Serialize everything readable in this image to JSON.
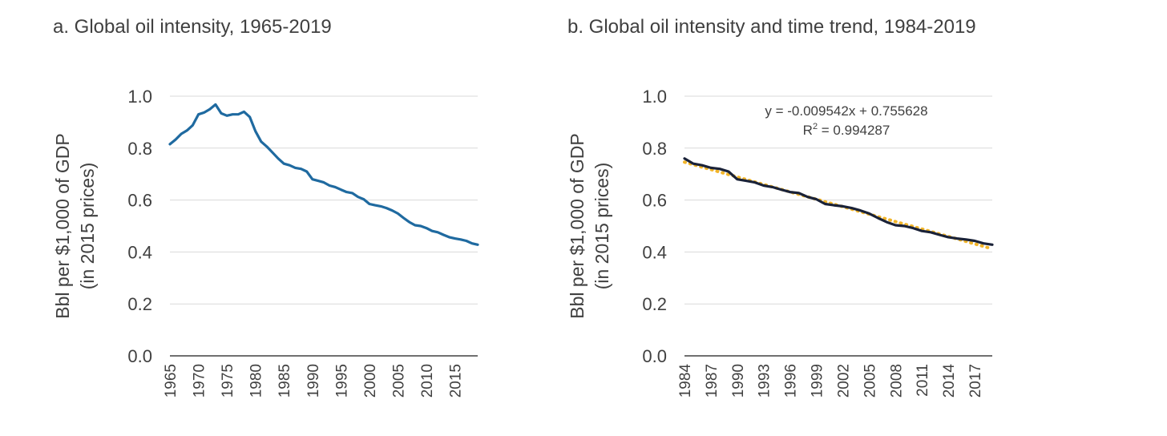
{
  "chart_data": [
    {
      "type": "line",
      "title": "a. Global oil intensity, 1965-2019",
      "ylabel_line1": "Bbl per $1,000 of GDP",
      "ylabel_line2": "(in 2015 prices)",
      "xlabel": "",
      "ylim": [
        0,
        1.0
      ],
      "yticks": [
        "0.0",
        "0.2",
        "0.4",
        "0.6",
        "0.8",
        "1.0"
      ],
      "xlim": [
        1965,
        2019
      ],
      "xticks": [
        "1965",
        "1970",
        "1975",
        "1980",
        "1985",
        "1990",
        "1995",
        "2000",
        "2005",
        "2010",
        "2015"
      ],
      "grid": true,
      "legend": "none",
      "series": [
        {
          "color": "#1F6AA0",
          "x": [
            1965,
            1966,
            1967,
            1968,
            1969,
            1970,
            1971,
            1972,
            1973,
            1974,
            1975,
            1976,
            1977,
            1978,
            1979,
            1980,
            1981,
            1982,
            1983,
            1984,
            1985,
            1986,
            1987,
            1988,
            1989,
            1990,
            1991,
            1992,
            1993,
            1994,
            1995,
            1996,
            1997,
            1998,
            1999,
            2000,
            2001,
            2002,
            2003,
            2004,
            2005,
            2006,
            2007,
            2008,
            2009,
            2010,
            2011,
            2012,
            2013,
            2014,
            2015,
            2016,
            2017,
            2018,
            2019
          ],
          "values": [
            0.815,
            0.833,
            0.855,
            0.868,
            0.888,
            0.93,
            0.937,
            0.95,
            0.968,
            0.934,
            0.925,
            0.93,
            0.93,
            0.94,
            0.92,
            0.865,
            0.825,
            0.806,
            0.783,
            0.76,
            0.74,
            0.734,
            0.724,
            0.72,
            0.71,
            0.68,
            0.674,
            0.668,
            0.656,
            0.65,
            0.64,
            0.631,
            0.627,
            0.612,
            0.603,
            0.585,
            0.58,
            0.576,
            0.569,
            0.56,
            0.548,
            0.531,
            0.515,
            0.503,
            0.5,
            0.492,
            0.481,
            0.476,
            0.466,
            0.457,
            0.452,
            0.448,
            0.443,
            0.433,
            0.428
          ]
        }
      ]
    },
    {
      "type": "line",
      "title": "b. Global oil intensity and time trend, 1984-2019",
      "ylabel_line1": "Bbl per $1,000 of GDP",
      "ylabel_line2": "(in 2015 prices)",
      "xlabel": "",
      "ylim": [
        0,
        1.0
      ],
      "yticks": [
        "0.0",
        "0.2",
        "0.4",
        "0.6",
        "0.8",
        "1.0"
      ],
      "xlim": [
        1984,
        2019
      ],
      "xticks": [
        "1984",
        "1987",
        "1990",
        "1993",
        "1996",
        "1999",
        "2002",
        "2005",
        "2008",
        "2011",
        "2014",
        "2017"
      ],
      "grid": true,
      "legend": "none",
      "annotation_line1": "y = -0.009542x + 0.755628",
      "annotation_line2_prefix": "R",
      "annotation_line2_sup": "2",
      "annotation_line2_suffix": " = 0.994287",
      "series": [
        {
          "color": "#1A2238",
          "x": [
            1984,
            1985,
            1986,
            1987,
            1988,
            1989,
            1990,
            1991,
            1992,
            1993,
            1994,
            1995,
            1996,
            1997,
            1998,
            1999,
            2000,
            2001,
            2002,
            2003,
            2004,
            2005,
            2006,
            2007,
            2008,
            2009,
            2010,
            2011,
            2012,
            2013,
            2014,
            2015,
            2016,
            2017,
            2018,
            2019
          ],
          "values": [
            0.76,
            0.74,
            0.734,
            0.724,
            0.72,
            0.71,
            0.68,
            0.674,
            0.668,
            0.656,
            0.65,
            0.64,
            0.631,
            0.627,
            0.612,
            0.603,
            0.585,
            0.58,
            0.576,
            0.569,
            0.56,
            0.548,
            0.531,
            0.515,
            0.503,
            0.5,
            0.492,
            0.481,
            0.476,
            0.466,
            0.457,
            0.452,
            0.448,
            0.443,
            0.433,
            0.428
          ]
        }
      ],
      "trendline": {
        "color": "#F2B52A",
        "slope": -0.009542,
        "intercept": 0.755628,
        "x_start_index": 1
      }
    }
  ]
}
